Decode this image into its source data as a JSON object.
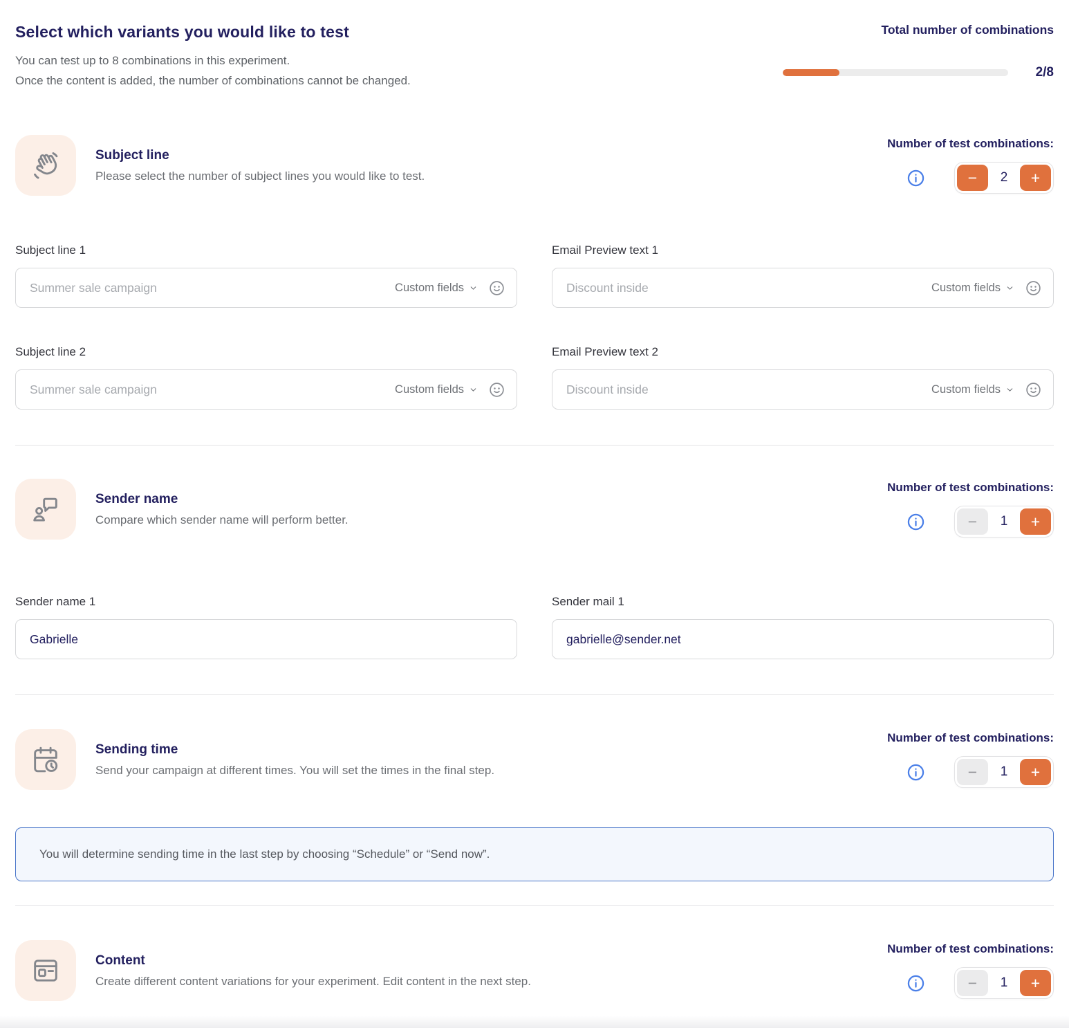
{
  "page": {
    "title": "Select which variants you would like to test",
    "subtitle_line1": "You can test up to 8 combinations in this experiment.",
    "subtitle_line2": "Once the content is added, the number of combinations cannot be changed."
  },
  "combinations": {
    "label": "Total number of combinations",
    "value": "2/8",
    "current": 2,
    "max": 8,
    "progress_percent": 25
  },
  "colors": {
    "accent_orange": "#e0713d",
    "navy": "#23205f",
    "info_blue": "#4a7fe8",
    "icon_bg": "#fcefe7",
    "notice_border": "#4a76c9",
    "notice_bg": "#f3f7fd"
  },
  "stepper": {
    "label": "Number of test combinations:",
    "minus": "−",
    "plus": "+"
  },
  "sections": [
    {
      "icon": "waving-hand-icon",
      "title": "Subject line",
      "description": "Please select the number of subject lines you would like to test.",
      "count": "2"
    },
    {
      "icon": "person-chat-icon",
      "title": "Sender name",
      "description": "Compare which sender name will perform better.",
      "count": "1"
    },
    {
      "icon": "calendar-clock-icon",
      "title": "Sending time",
      "description": "Send your campaign at different times. You will set the times in the final step.",
      "count": "1"
    },
    {
      "icon": "content-layout-icon",
      "title": "Content",
      "description": "Create different content variations for your experiment. Edit content in the next step.",
      "count": "1"
    }
  ],
  "fields": {
    "custom_fields_label": "Custom fields",
    "subject1": {
      "label": "Subject line 1",
      "placeholder": "Summer sale campaign"
    },
    "preview1": {
      "label": "Email Preview text 1",
      "placeholder": "Discount inside"
    },
    "subject2": {
      "label": "Subject line 2",
      "placeholder": "Summer sale campaign"
    },
    "preview2": {
      "label": "Email Preview text 2",
      "placeholder": "Discount inside"
    },
    "sender_name1": {
      "label": "Sender name 1",
      "value": "Gabrielle"
    },
    "sender_mail1": {
      "label": "Sender mail 1",
      "value": "gabrielle@sender.net"
    }
  },
  "notice": "You will determine sending time in the last step by choosing “Schedule” or “Send now”."
}
